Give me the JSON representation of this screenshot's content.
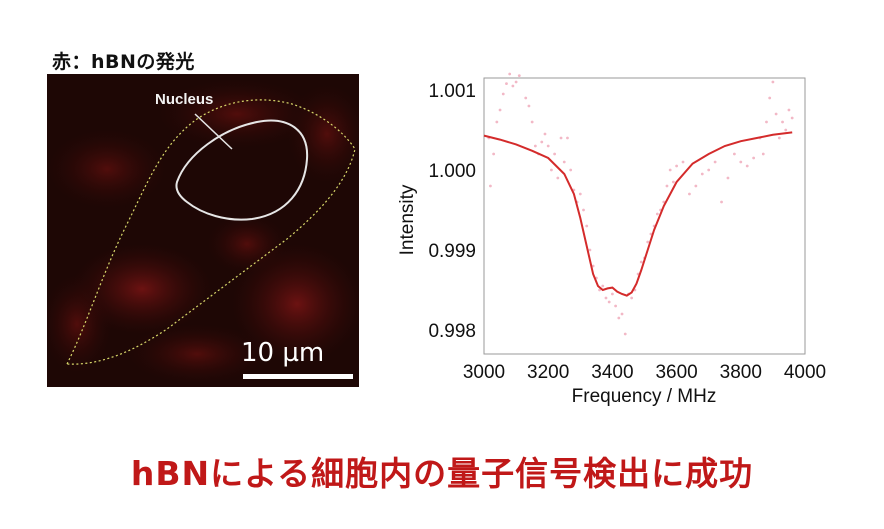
{
  "panel_label": "赤：hBNの発光",
  "microscopy": {
    "nucleus_label": "Nucleus",
    "scale_bar_label": "10 µm",
    "colors": {
      "background": "#1e0705",
      "cell_outline": "#d8d86a",
      "nucleus_outline": "#e6e6e6",
      "scale_bar": "#ffffff"
    }
  },
  "chart_data": {
    "type": "scatter",
    "xlabel": "Frequency / MHz",
    "ylabel": "Intensity",
    "xlim": [
      3000,
      4000
    ],
    "ylim": [
      0.9977,
      1.00115
    ],
    "xticks": [
      "3000",
      "3200",
      "3400",
      "3600",
      "3800",
      "4000"
    ],
    "yticks": [
      "0.998",
      "0.999",
      "1.000",
      "1.001"
    ],
    "grid": false,
    "series": [
      {
        "kind": "points",
        "color": "#f2b8c6",
        "points": [
          [
            3015,
            1.0004
          ],
          [
            3020,
            0.9998
          ],
          [
            3030,
            1.0002
          ],
          [
            3040,
            1.0006
          ],
          [
            3050,
            1.00075
          ],
          [
            3060,
            1.00095
          ],
          [
            3070,
            1.00108
          ],
          [
            3080,
            1.0012
          ],
          [
            3090,
            1.00105
          ],
          [
            3100,
            1.0011
          ],
          [
            3110,
            1.00118
          ],
          [
            3120,
            1.0013
          ],
          [
            3130,
            1.0009
          ],
          [
            3140,
            1.0008
          ],
          [
            3150,
            1.0006
          ],
          [
            3160,
            1.0003
          ],
          [
            3170,
            1.0002
          ],
          [
            3180,
            1.00035
          ],
          [
            3190,
            1.00045
          ],
          [
            3200,
            1.0003
          ],
          [
            3210,
            1.0
          ],
          [
            3220,
            1.0002
          ],
          [
            3230,
            0.9999
          ],
          [
            3240,
            1.0004
          ],
          [
            3250,
            1.0001
          ],
          [
            3260,
            1.0004
          ],
          [
            3270,
            1.0
          ],
          [
            3280,
            0.99975
          ],
          [
            3290,
            0.9996
          ],
          [
            3300,
            0.9997
          ],
          [
            3310,
            0.9995
          ],
          [
            3320,
            0.9993
          ],
          [
            3330,
            0.999
          ],
          [
            3340,
            0.9988
          ],
          [
            3350,
            0.99865
          ],
          [
            3360,
            0.9985
          ],
          [
            3370,
            0.99855
          ],
          [
            3380,
            0.9984
          ],
          [
            3390,
            0.99835
          ],
          [
            3400,
            0.99845
          ],
          [
            3410,
            0.9983
          ],
          [
            3420,
            0.99815
          ],
          [
            3430,
            0.9982
          ],
          [
            3440,
            0.99795
          ],
          [
            3450,
            0.99845
          ],
          [
            3460,
            0.9984
          ],
          [
            3470,
            0.9985
          ],
          [
            3480,
            0.9987
          ],
          [
            3490,
            0.99885
          ],
          [
            3500,
            0.9989
          ],
          [
            3510,
            0.9991
          ],
          [
            3520,
            0.9992
          ],
          [
            3530,
            0.9993
          ],
          [
            3540,
            0.99945
          ],
          [
            3550,
            0.9995
          ],
          [
            3560,
            0.9996
          ],
          [
            3570,
            0.9998
          ],
          [
            3580,
            1.0
          ],
          [
            3590,
            0.99985
          ],
          [
            3600,
            1.00005
          ],
          [
            3620,
            1.0001
          ],
          [
            3640,
            0.9997
          ],
          [
            3660,
            0.9998
          ],
          [
            3680,
            0.99995
          ],
          [
            3700,
            1.0
          ],
          [
            3720,
            1.0001
          ],
          [
            3740,
            0.9996
          ],
          [
            3760,
            0.9999
          ],
          [
            3780,
            1.0002
          ],
          [
            3800,
            1.0001
          ],
          [
            3820,
            1.00005
          ],
          [
            3840,
            1.00015
          ],
          [
            3860,
            1.0004
          ],
          [
            3870,
            1.0002
          ],
          [
            3880,
            1.0006
          ],
          [
            3890,
            1.0009
          ],
          [
            3900,
            1.0011
          ],
          [
            3910,
            1.0007
          ],
          [
            3920,
            1.0004
          ],
          [
            3930,
            1.0006
          ],
          [
            3940,
            1.0005
          ],
          [
            3950,
            1.00075
          ],
          [
            3960,
            1.00065
          ]
        ]
      },
      {
        "kind": "fit",
        "color": "#d42b2b",
        "points": [
          [
            3000,
            1.00043
          ],
          [
            3050,
            1.00038
          ],
          [
            3100,
            1.00032
          ],
          [
            3150,
            1.00024
          ],
          [
            3200,
            1.00015
          ],
          [
            3250,
            0.99995
          ],
          [
            3280,
            0.9997
          ],
          [
            3300,
            0.9994
          ],
          [
            3320,
            0.99905
          ],
          [
            3340,
            0.9987
          ],
          [
            3355,
            0.99855
          ],
          [
            3370,
            0.9985
          ],
          [
            3385,
            0.99852
          ],
          [
            3400,
            0.99853
          ],
          [
            3415,
            0.99848
          ],
          [
            3430,
            0.99845
          ],
          [
            3445,
            0.99843
          ],
          [
            3460,
            0.99847
          ],
          [
            3475,
            0.99858
          ],
          [
            3490,
            0.99875
          ],
          [
            3510,
            0.999
          ],
          [
            3530,
            0.99925
          ],
          [
            3560,
            0.99955
          ],
          [
            3600,
            0.99985
          ],
          [
            3650,
            1.00008
          ],
          [
            3700,
            1.0002
          ],
          [
            3750,
            1.0003
          ],
          [
            3800,
            1.00036
          ],
          [
            3850,
            1.0004
          ],
          [
            3900,
            1.00044
          ],
          [
            3960,
            1.00047
          ]
        ]
      }
    ]
  },
  "bottom_title": "hBNによる細胞内の量子信号検出に成功"
}
